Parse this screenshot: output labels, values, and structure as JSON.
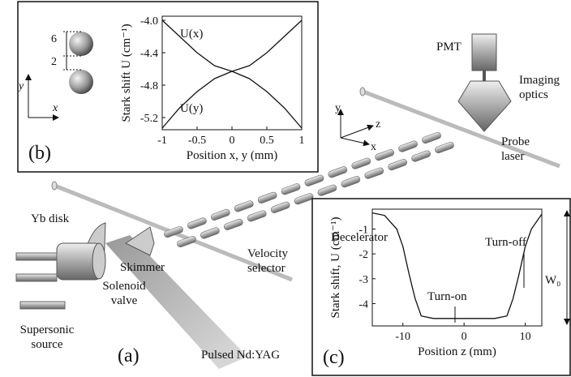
{
  "diagram": {
    "panel_labels": [
      "(a)",
      "(b)",
      "(c)"
    ],
    "labels": {
      "pmt": "PMT",
      "imaging_optics": "Imaging optics",
      "probe_laser": "Probe laser",
      "yb_disk": "Yb disk",
      "skimmer": "Skimmer",
      "decelerator": "Decelerator",
      "velocity_selector": "Velocity selector",
      "solenoid_valve": "Solenoid valve",
      "supersonic_source": "Supersonic source",
      "pulsed_ndyag": "Pulsed Nd:YAG"
    },
    "axes_main": [
      "y",
      "z",
      "x"
    ],
    "axes_inset": [
      "y",
      "x"
    ],
    "dimensions": [
      "6",
      "2"
    ]
  },
  "chart_data": [
    {
      "type": "line",
      "ylabel": "Stark shift U (cm⁻¹)",
      "xlabel": "Position x, y (mm)",
      "x": [
        -1,
        -0.75,
        -0.5,
        -0.25,
        0,
        0.25,
        0.5,
        0.75,
        1
      ],
      "series": [
        {
          "name": "U(x)",
          "color": "#111111",
          "values": [
            -4.0,
            -4.2,
            -4.4,
            -4.56,
            -4.63,
            -4.56,
            -4.4,
            -4.2,
            -4.0
          ]
        },
        {
          "name": "U(y)",
          "color": "#111111",
          "values": [
            -5.33,
            -5.08,
            -4.88,
            -4.72,
            -4.63,
            -4.72,
            -4.88,
            -5.08,
            -5.33
          ]
        }
      ],
      "xlim": [
        -1,
        1
      ],
      "ylim": [
        -5.35,
        -3.95
      ],
      "xticks": [
        -1,
        -0.5,
        0,
        0.5,
        1
      ],
      "yticks": [
        {
          "value": -4,
          "label": "-4.0"
        },
        -4.4,
        -4.8,
        -5.2
      ]
    },
    {
      "type": "line",
      "ylabel": "Stark shift, U (cm⁻¹)",
      "xlabel": "Position z (mm)",
      "x": [
        -15,
        -13,
        -11,
        -10,
        -9,
        -8,
        -7,
        -5,
        0,
        5,
        7,
        8,
        9,
        10,
        11,
        12.7
      ],
      "series": [
        {
          "name": null,
          "color": "#111111",
          "values": [
            -0.35,
            -0.45,
            -1.0,
            -1.7,
            -2.8,
            -3.8,
            -4.5,
            -4.6,
            -4.6,
            -4.6,
            -4.5,
            -3.8,
            -2.8,
            -1.7,
            -1.0,
            -0.4
          ]
        }
      ],
      "annotations": [
        "Turn-on",
        "Turn-off",
        "W₀"
      ],
      "xlim": [
        -15,
        12.7
      ],
      "ylim": [
        -4.9,
        -0.2
      ],
      "xticks": [
        -10,
        0,
        10
      ],
      "yticks": [
        -1,
        -2,
        -3,
        -4
      ]
    }
  ]
}
